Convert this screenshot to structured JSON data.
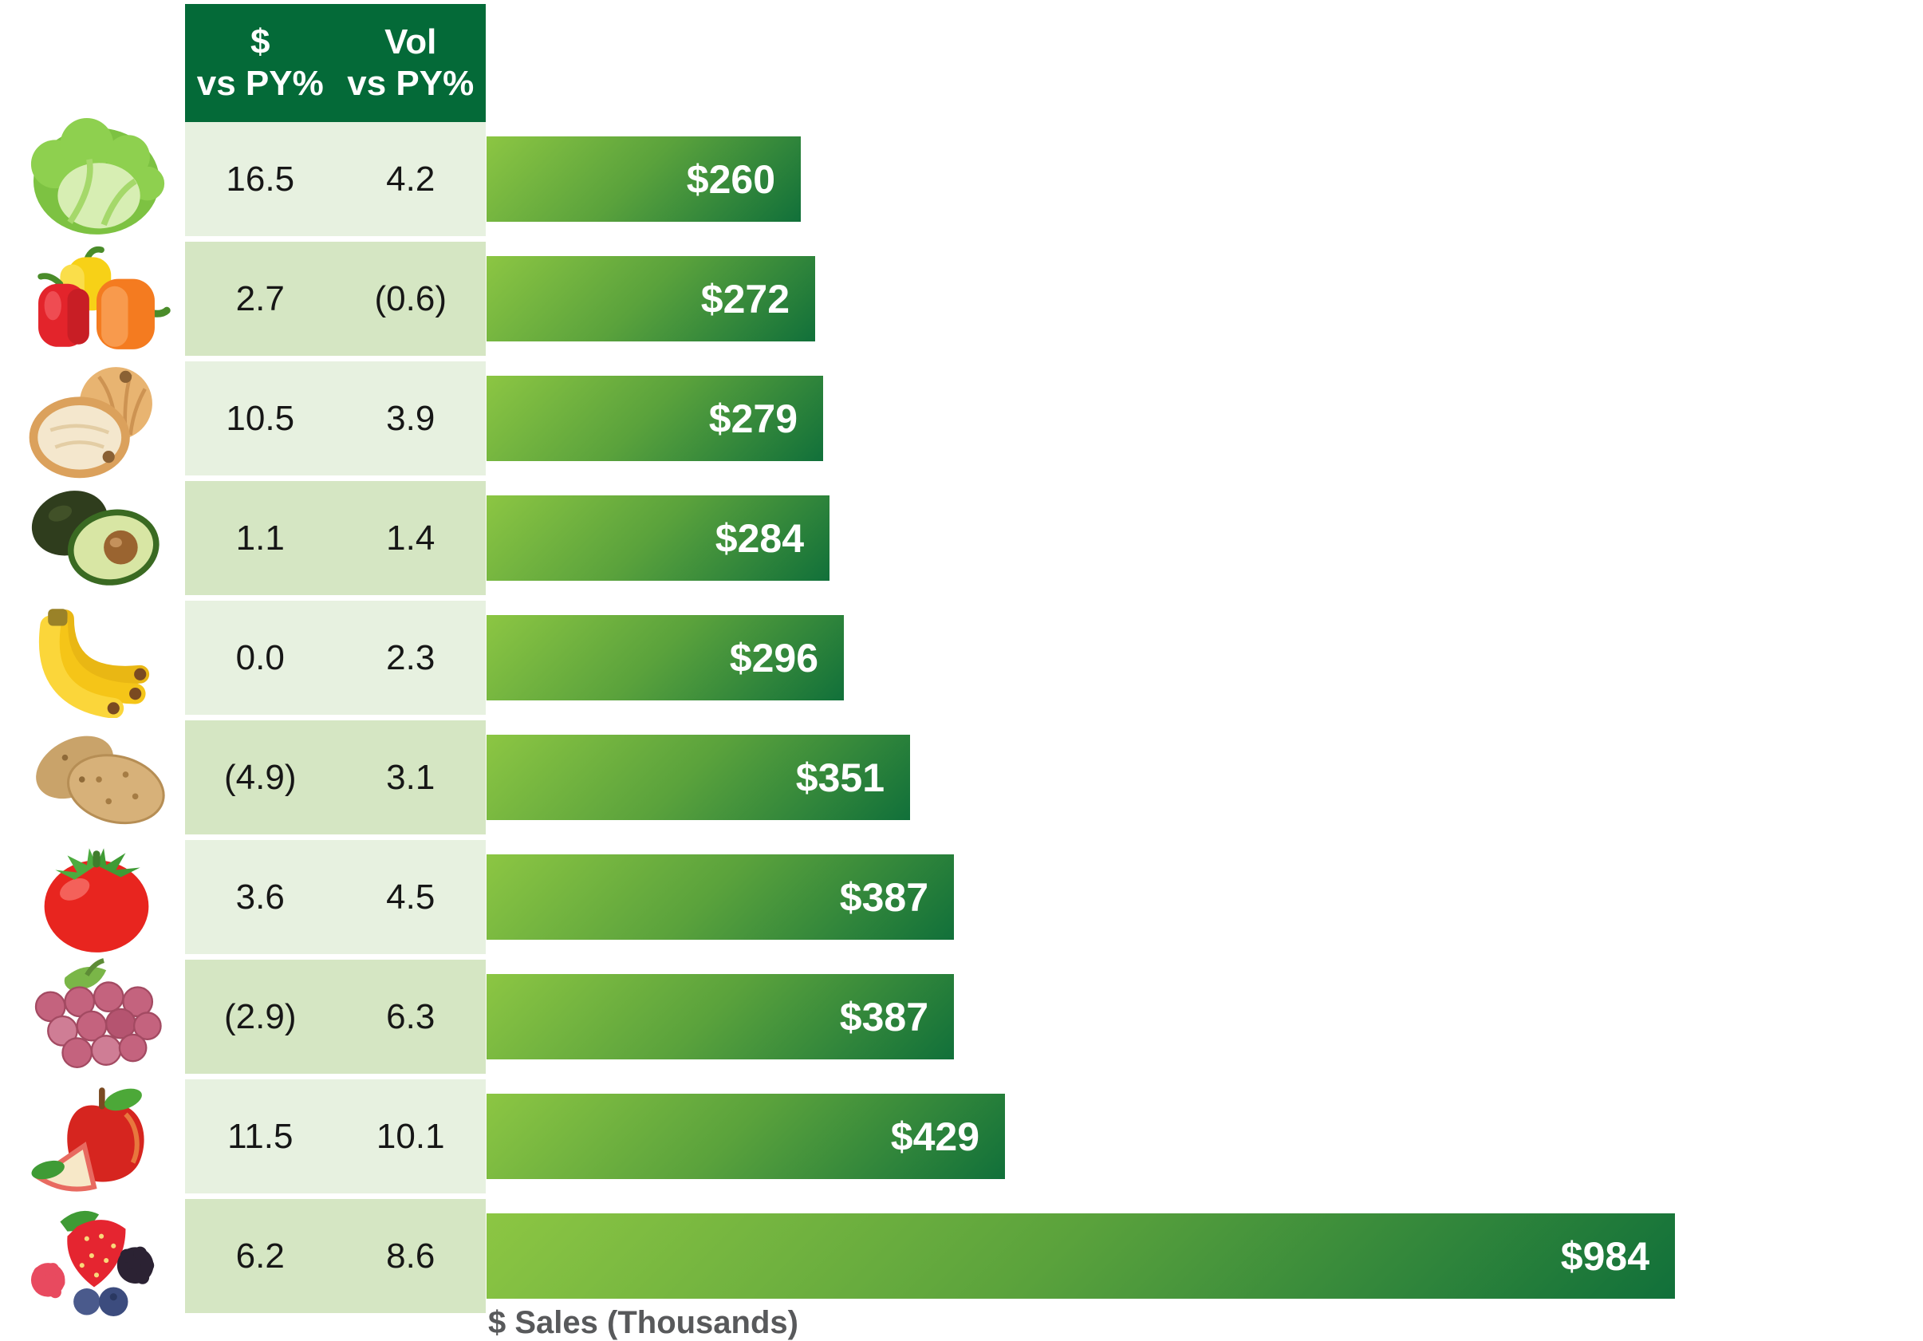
{
  "table": {
    "columns": [
      {
        "line1": "$",
        "line2": "vs PY%"
      },
      {
        "line1": "Vol",
        "line2": "vs PY%"
      }
    ]
  },
  "rows": [
    {
      "icon": "lettuce-icon",
      "category": "Lettuce",
      "dollar_vs_py": "16.5",
      "vol_vs_py": "4.2",
      "sales_label": "$260",
      "sales_value": 260
    },
    {
      "icon": "bell-peppers-icon",
      "category": "Bell Peppers",
      "dollar_vs_py": "2.7",
      "vol_vs_py": "(0.6)",
      "sales_label": "$272",
      "sales_value": 272
    },
    {
      "icon": "onion-icon",
      "category": "Onions",
      "dollar_vs_py": "10.5",
      "vol_vs_py": "3.9",
      "sales_label": "$279",
      "sales_value": 279
    },
    {
      "icon": "avocado-icon",
      "category": "Avocados",
      "dollar_vs_py": "1.1",
      "vol_vs_py": "1.4",
      "sales_label": "$284",
      "sales_value": 284
    },
    {
      "icon": "bananas-icon",
      "category": "Bananas",
      "dollar_vs_py": "0.0",
      "vol_vs_py": "2.3",
      "sales_label": "$296",
      "sales_value": 296
    },
    {
      "icon": "potatoes-icon",
      "category": "Potatoes",
      "dollar_vs_py": "(4.9)",
      "vol_vs_py": "3.1",
      "sales_label": "$351",
      "sales_value": 351
    },
    {
      "icon": "tomato-icon",
      "category": "Tomatoes",
      "dollar_vs_py": "3.6",
      "vol_vs_py": "4.5",
      "sales_label": "$387",
      "sales_value": 387
    },
    {
      "icon": "grapes-icon",
      "category": "Grapes",
      "dollar_vs_py": "(2.9)",
      "vol_vs_py": "6.3",
      "sales_label": "$387",
      "sales_value": 387
    },
    {
      "icon": "apple-icon",
      "category": "Apples",
      "dollar_vs_py": "11.5",
      "vol_vs_py": "10.1",
      "sales_label": "$429",
      "sales_value": 429
    },
    {
      "icon": "berries-icon",
      "category": "Berries",
      "dollar_vs_py": "6.2",
      "vol_vs_py": "8.6",
      "sales_label": "$984",
      "sales_value": 984
    }
  ],
  "axis": {
    "xlabel": "$ Sales (Thousands)"
  },
  "colors": {
    "header_bg": "#046a38",
    "row_light": "#e7f1e0",
    "row_dark": "#d5e6c3",
    "bar_gradient_start": "#8cc643",
    "bar_gradient_end": "#11703a",
    "bar_label": "#ffffff",
    "table_text": "#161616",
    "axis_label": "#58595b"
  },
  "chart_data": {
    "type": "bar",
    "orientation": "horizontal",
    "title": "",
    "xlabel": "$ Sales (Thousands)",
    "ylabel": "",
    "xlim": [
      0,
      1000
    ],
    "grid": false,
    "legend": false,
    "categories": [
      "Lettuce",
      "Bell Peppers",
      "Onions",
      "Avocados",
      "Bananas",
      "Potatoes",
      "Tomatoes",
      "Grapes",
      "Apples",
      "Berries"
    ],
    "values": [
      260,
      272,
      279,
      284,
      296,
      351,
      387,
      387,
      429,
      984
    ],
    "bar_labels": [
      "$260",
      "$272",
      "$279",
      "$284",
      "$296",
      "$351",
      "$387",
      "$387",
      "$429",
      "$984"
    ],
    "series": [
      {
        "name": "$ vs PY%",
        "values": [
          16.5,
          2.7,
          10.5,
          1.1,
          0.0,
          -4.9,
          3.6,
          -2.9,
          11.5,
          6.2
        ],
        "display": [
          "16.5",
          "2.7",
          "10.5",
          "1.1",
          "0.0",
          "(4.9)",
          "3.6",
          "(2.9)",
          "11.5",
          "6.2"
        ]
      },
      {
        "name": "Vol vs PY%",
        "values": [
          4.2,
          -0.6,
          3.9,
          1.4,
          2.3,
          3.1,
          4.5,
          6.3,
          10.1,
          8.6
        ],
        "display": [
          "4.2",
          "(0.6)",
          "3.9",
          "1.4",
          "2.3",
          "3.1",
          "4.5",
          "6.3",
          "10.1",
          "8.6"
        ]
      }
    ]
  }
}
